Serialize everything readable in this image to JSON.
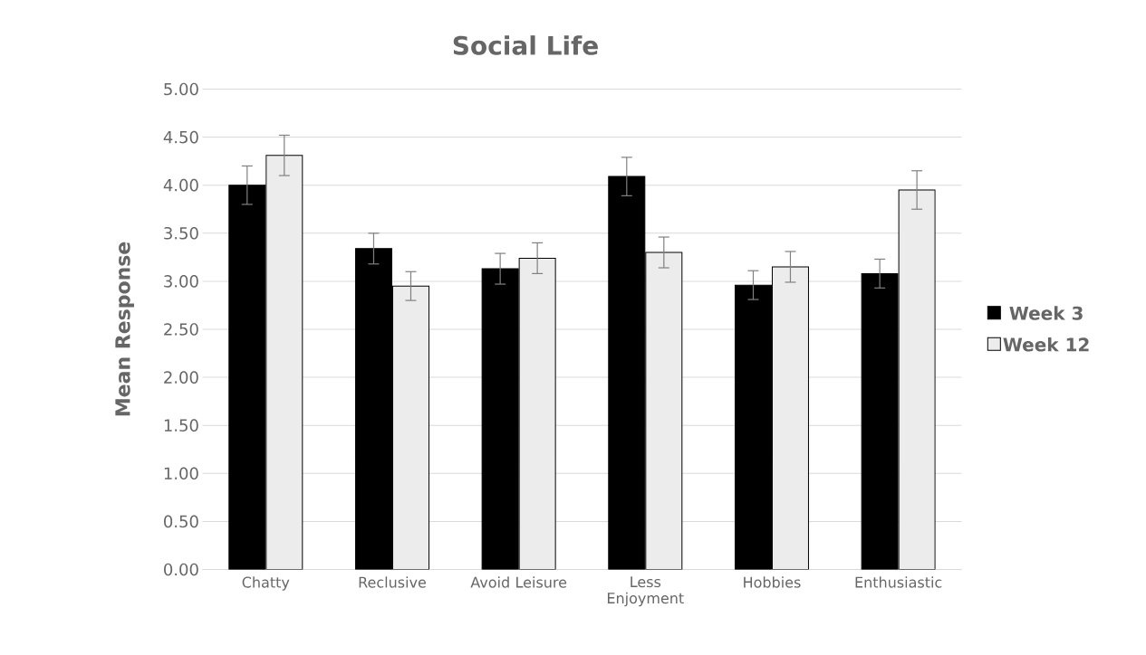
{
  "chart_data": {
    "type": "bar",
    "title": "Social Life",
    "ylabel": "Mean Response",
    "categories": [
      "Chatty",
      "Reclusive",
      "Avoid Leisure",
      "Less Enjoyment",
      "Hobbies",
      "Enthusiastic"
    ],
    "series": [
      {
        "name": "Week 3",
        "color": "#000000",
        "values": [
          4.0,
          3.34,
          3.13,
          4.09,
          2.96,
          3.08
        ],
        "errors": [
          0.2,
          0.16,
          0.16,
          0.2,
          0.15,
          0.15
        ]
      },
      {
        "name": "Week 12",
        "color": "#ececec",
        "values": [
          4.31,
          2.95,
          3.24,
          3.3,
          3.15,
          3.95
        ],
        "errors": [
          0.21,
          0.15,
          0.16,
          0.16,
          0.16,
          0.2
        ]
      }
    ],
    "ylim": [
      0,
      5
    ],
    "yticks": [
      {
        "value": 0,
        "label": "0.00"
      },
      {
        "value": 0.5,
        "label": "0.50"
      },
      {
        "value": 1,
        "label": "1.00"
      },
      {
        "value": 1.5,
        "label": "1.50"
      },
      {
        "value": 2,
        "label": "2.00"
      },
      {
        "value": 2.5,
        "label": "2.50"
      },
      {
        "value": 3,
        "label": "3.00"
      },
      {
        "value": 3.5,
        "label": "3.50"
      },
      {
        "value": 4,
        "label": "4.00"
      },
      {
        "value": 4.5,
        "label": "4.50"
      },
      {
        "value": 5,
        "label": "5.00"
      }
    ],
    "grid": "y",
    "legend": "right"
  }
}
